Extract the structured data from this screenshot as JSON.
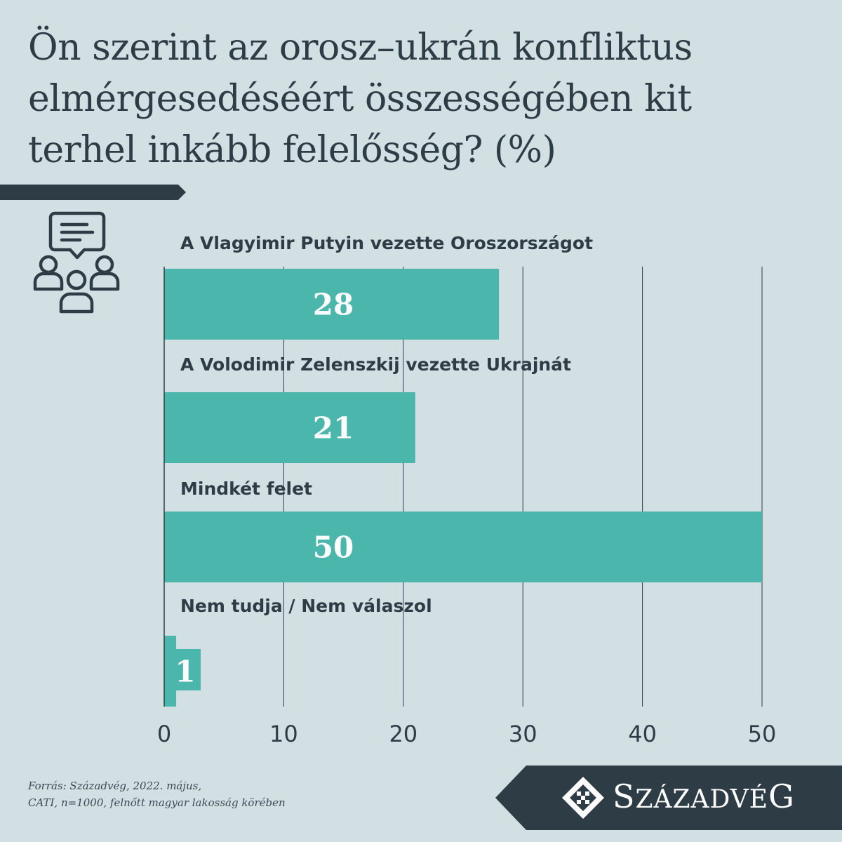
{
  "title_lines": [
    "Ön szerint az orosz–ukrán konfliktus",
    "elmérgesedéséért összességében kit",
    "terhel inkább felelősség? (%)"
  ],
  "icon": "people-discussion-icon",
  "colors": {
    "background": "#d2e0e4",
    "bar": "#4bb6ab",
    "dark": "#2e3d45",
    "text": "#2e3d45",
    "value_text": "#ffffff"
  },
  "chart_data": {
    "type": "bar",
    "orientation": "horizontal",
    "title": "Ön szerint az orosz–ukrán konfliktus elmérgesedéséért összességében kit terhel inkább felelősség? (%)",
    "categories": [
      "A Vlagyimir Putyin vezette Oroszországot",
      "A Volodimir Zelenszkij vezette Ukrajnát",
      "Mindkét felet",
      "Nem tudja / Nem válaszol"
    ],
    "values": [
      28,
      21,
      50,
      1
    ],
    "value_labels": [
      "28",
      "21",
      "50",
      "1"
    ],
    "xlim": [
      0,
      50
    ],
    "xticks": [
      0,
      10,
      20,
      30,
      40,
      50
    ],
    "xtick_labels": [
      "0",
      "10",
      "20",
      "30",
      "40",
      "50"
    ],
    "grid": "vertical",
    "legend": "none"
  },
  "source": {
    "line1": "Forrás: Századvég, 2022. május,",
    "line2": "CATI, n=1000, felnőtt magyar lakosság körében"
  },
  "logo": {
    "first": "S",
    "rest1": "ZÁZADV",
    "mid": "É",
    "last": "G"
  }
}
